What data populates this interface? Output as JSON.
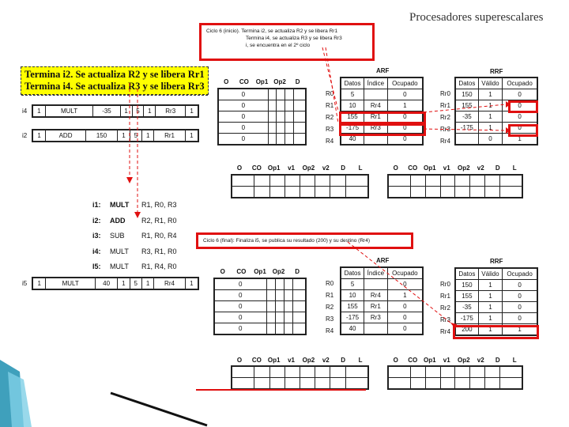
{
  "slide_title": "Procesadores superescalares",
  "note_top": {
    "l1": "Ciclo 6 (inicio). Termina i2, se actualiza R2 y se libera Rr1",
    "l2": "Termina i4, se actualiza R3 y se libera Rr3",
    "l3": "i, se encuentra en el 2º ciclo"
  },
  "yellow_note": {
    "l1": "Termina i2. Se actualiza R2 y se libera Rr1",
    "l2": "Termina i4. Se actualiza R3 y se libera Rr3"
  },
  "rob_rows": {
    "i4": [
      "1",
      "MULT",
      "-35",
      "1",
      "5",
      "1",
      "Rr3",
      "1"
    ],
    "i2": [
      "1",
      "ADD",
      "150",
      "1",
      "5",
      "1",
      "Rr1",
      "1"
    ],
    "i5": [
      "1",
      "MULT",
      "40",
      "1",
      "5",
      "1",
      "Rr4",
      "1"
    ]
  },
  "rob_labels": {
    "i4": "i4",
    "i2": "i2",
    "i5": "i5"
  },
  "station_headers": [
    "O",
    "CO",
    "Op1",
    "Op2",
    "D"
  ],
  "station_rows": [
    [
      "0",
      "",
      "",
      "",
      ""
    ],
    [
      "0",
      "",
      "",
      "",
      ""
    ],
    [
      "0",
      "",
      "",
      "",
      ""
    ],
    [
      "0",
      "",
      "",
      "",
      ""
    ],
    [
      "0",
      "",
      "",
      "",
      ""
    ]
  ],
  "lower_station_headers": [
    "O",
    "CO",
    "Op1",
    "v1",
    "Op2",
    "v2",
    "D",
    "L"
  ],
  "arf_title": "ARF",
  "rrf_title": "RRF",
  "arf_headers": [
    "Datos",
    "Índice",
    "Ocupado"
  ],
  "arf_labels": [
    "R0",
    "R1",
    "R2",
    "R3",
    "R4"
  ],
  "arf_top": [
    [
      "5",
      "",
      "0"
    ],
    [
      "10",
      "Rr4",
      "1"
    ],
    [
      "155",
      "Rr1",
      "0"
    ],
    [
      "-175",
      "Rr3",
      "0"
    ],
    [
      "40",
      "",
      "0"
    ]
  ],
  "arf_bottom": [
    [
      "5",
      "",
      "0"
    ],
    [
      "10",
      "Rr4",
      "1"
    ],
    [
      "155",
      "Rr1",
      "0"
    ],
    [
      "-175",
      "Rr3",
      "0"
    ],
    [
      "40",
      "",
      "0"
    ]
  ],
  "rrf_headers": [
    "Datos",
    "Válido",
    "Ocupado"
  ],
  "rrf_labels": [
    "Rr0",
    "Rr1",
    "Rr2",
    "Rr3",
    "Rr4"
  ],
  "rrf_top": [
    [
      "150",
      "1",
      "0"
    ],
    [
      "155",
      "1",
      "0"
    ],
    [
      "-35",
      "1",
      "0"
    ],
    [
      "-175",
      "1",
      "0"
    ],
    [
      "",
      "0",
      "1"
    ]
  ],
  "rrf_bottom": [
    [
      "150",
      "1",
      "0"
    ],
    [
      "155",
      "1",
      "0"
    ],
    [
      "-35",
      "1",
      "0"
    ],
    [
      "-175",
      "1",
      "0"
    ],
    [
      "200",
      "1",
      "1"
    ]
  ],
  "instructions": [
    {
      "id": "i1:",
      "op": "MULT",
      "args": "R1, R0, R3"
    },
    {
      "id": "i2:",
      "op": "ADD",
      "args": "R2, R1, R0"
    },
    {
      "id": "i3:",
      "op": "SUB",
      "args": "R1, R0, R4"
    },
    {
      "id": "i4:",
      "op": "MULT",
      "args": "R3, R1, R0"
    },
    {
      "id": "I5:",
      "op": "MULT",
      "args": "R1, R4, R0"
    }
  ],
  "note_bottom": "Ciclo 6 (final): Finaliza i5, se publica su resultado (200) y su destino (Rr4)",
  "colors": {
    "highlight": "#e01010",
    "note_bg": "#ffff00",
    "decor": "#1d8fb0"
  }
}
